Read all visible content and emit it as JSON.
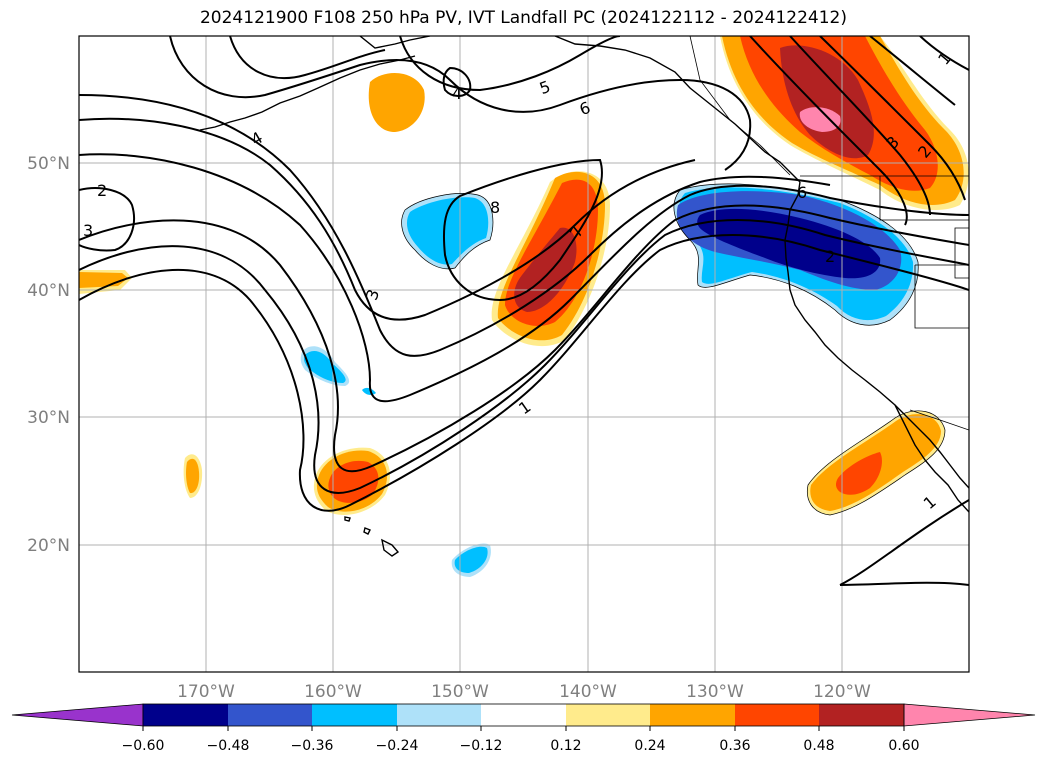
{
  "title": "2024121900 F108 250 hPa PV, IVT Landfall PC (2024122112 - 2024122412)",
  "map": {
    "lat_labels": [
      "50°N",
      "40°N",
      "30°N",
      "20°N"
    ],
    "lon_labels": [
      "170°W",
      "160°W",
      "150°W",
      "140°W",
      "130°W",
      "120°W"
    ],
    "contour_labels": [
      "1",
      "1",
      "1",
      "2",
      "2",
      "2",
      "3",
      "3",
      "3",
      "4",
      "4",
      "5",
      "6",
      "6",
      "7",
      "8"
    ]
  },
  "colorbar": {
    "colors": [
      "#9933cc",
      "#00008b",
      "#3355cc",
      "#00bfff",
      "#aee1f9",
      "#ffffff",
      "#ffeb8c",
      "#ffa500",
      "#ff4500",
      "#b22222",
      "#ff85ad"
    ],
    "tick_labels": [
      "−0.60",
      "−0.48",
      "−0.36",
      "−0.24",
      "−0.12",
      "0.12",
      "0.24",
      "0.36",
      "0.48",
      "0.60"
    ]
  }
}
